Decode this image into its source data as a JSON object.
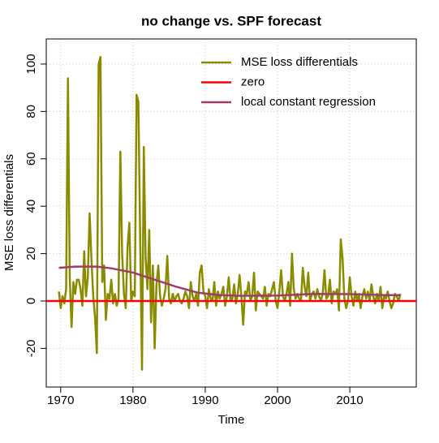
{
  "chart_data": {
    "type": "line",
    "title": "no change vs. SPF forecast",
    "xlabel": "Time",
    "ylabel": "MSE loss differentials",
    "xlim": [
      1968,
      2019.2
    ],
    "ylim": [
      -36.3,
      110.6
    ],
    "xticks": [
      1970,
      1980,
      1990,
      2000,
      2010
    ],
    "yticks": [
      -20,
      0,
      20,
      40,
      60,
      80,
      100
    ],
    "grid": true,
    "legend": "top-right",
    "series": [
      {
        "name": "MSE loss differentials",
        "color": "#8b8b00",
        "x": [
          1969.75,
          1970,
          1970.25,
          1970.5,
          1970.75,
          1971,
          1971.25,
          1971.5,
          1971.75,
          1972,
          1972.25,
          1972.5,
          1972.75,
          1973,
          1973.25,
          1973.5,
          1973.75,
          1974,
          1974.25,
          1974.5,
          1974.75,
          1975,
          1975.25,
          1975.5,
          1975.75,
          1976,
          1976.25,
          1976.5,
          1976.75,
          1977,
          1977.25,
          1977.5,
          1977.75,
          1978,
          1978.25,
          1978.5,
          1978.75,
          1979,
          1979.25,
          1979.5,
          1979.75,
          1980,
          1980.25,
          1980.5,
          1980.75,
          1981,
          1981.25,
          1981.5,
          1981.75,
          1982,
          1982.25,
          1982.5,
          1982.75,
          1983,
          1983.25,
          1983.5,
          1983.75,
          1984,
          1984.25,
          1984.5,
          1984.75,
          1985,
          1985.25,
          1985.5,
          1985.75,
          1986,
          1986.25,
          1986.5,
          1986.75,
          1987,
          1987.25,
          1987.5,
          1987.75,
          1988,
          1988.25,
          1988.5,
          1988.75,
          1989,
          1989.25,
          1989.5,
          1989.75,
          1990,
          1990.25,
          1990.5,
          1990.75,
          1991,
          1991.25,
          1991.5,
          1991.75,
          1992,
          1992.25,
          1992.5,
          1992.75,
          1993,
          1993.25,
          1993.5,
          1993.75,
          1994,
          1994.25,
          1994.5,
          1994.75,
          1995,
          1995.25,
          1995.5,
          1995.75,
          1996,
          1996.25,
          1996.5,
          1996.75,
          1997,
          1997.25,
          1997.5,
          1997.75,
          1998,
          1998.25,
          1998.5,
          1998.75,
          1999,
          1999.25,
          1999.5,
          1999.75,
          2000,
          2000.25,
          2000.5,
          2000.75,
          2001,
          2001.25,
          2001.5,
          2001.75,
          2002,
          2002.25,
          2002.5,
          2002.75,
          2003,
          2003.25,
          2003.5,
          2003.75,
          2004,
          2004.25,
          2004.5,
          2004.75,
          2005,
          2005.25,
          2005.5,
          2005.75,
          2006,
          2006.25,
          2006.5,
          2006.75,
          2007,
          2007.25,
          2007.5,
          2007.75,
          2008,
          2008.25,
          2008.5,
          2008.75,
          2009,
          2009.25,
          2009.5,
          2009.75,
          2010,
          2010.25,
          2010.5,
          2010.75,
          2011,
          2011.25,
          2011.5,
          2011.75,
          2012,
          2012.25,
          2012.5,
          2012.75,
          2013,
          2013.25,
          2013.5,
          2013.75,
          2014,
          2014.25,
          2014.5,
          2014.75,
          2015,
          2015.25,
          2015.5,
          2015.75,
          2016,
          2016.25,
          2016.5,
          2016.75,
          2017
        ],
        "values": [
          4,
          -3,
          2,
          -1,
          5,
          94,
          10,
          -11,
          8,
          3,
          9,
          9,
          5,
          -2,
          21,
          2,
          10,
          37,
          18,
          2,
          -7,
          -22,
          100,
          103,
          8,
          15,
          -8,
          3,
          1,
          9,
          -1,
          3,
          -2,
          1,
          63,
          20,
          3,
          -3,
          23,
          33,
          0,
          4,
          2,
          87,
          84,
          25,
          -29,
          65,
          18,
          5,
          30,
          -9,
          15,
          -20,
          7,
          15,
          2,
          -2,
          1,
          5,
          19,
          1,
          -1,
          3,
          0,
          2,
          3,
          0,
          -1,
          1,
          4,
          2,
          -3,
          8,
          2,
          0,
          3,
          -2,
          12,
          15,
          4,
          2,
          -3,
          5,
          1,
          0,
          8,
          -2,
          4,
          1,
          3,
          6,
          -2,
          2,
          10,
          0,
          1,
          7,
          -1,
          3,
          11,
          2,
          -10,
          4,
          3,
          8,
          0,
          2,
          12,
          -4,
          4,
          3,
          2,
          1,
          6,
          -2,
          3,
          2,
          5,
          8,
          0,
          -3,
          4,
          13,
          2,
          0,
          3,
          8,
          -2,
          20,
          5,
          1,
          3,
          1,
          0,
          14,
          6,
          2,
          12,
          0,
          3,
          4,
          1,
          5,
          2,
          0,
          3,
          13,
          1,
          2,
          9,
          -1,
          4,
          3,
          5,
          -4,
          26,
          18,
          1,
          -3,
          0,
          10,
          2,
          -2,
          4,
          0,
          3,
          -3,
          2,
          5,
          1,
          4,
          0,
          7,
          2,
          -1,
          3,
          0,
          6,
          -3,
          2,
          1,
          4,
          0,
          -3,
          -1,
          3,
          2,
          0,
          3
        ]
      },
      {
        "name": "zero",
        "color": "#ff0000",
        "x": [
          1968,
          2019.2
        ],
        "values": [
          0,
          0
        ]
      },
      {
        "name": "local constant regression",
        "color": "#a33b6a",
        "x": [
          1969.75,
          1972,
          1975,
          1977,
          1980,
          1983,
          1986,
          1989,
          1992,
          1995,
          2000,
          2005,
          2010,
          2015,
          2017
        ],
        "values": [
          14,
          14.5,
          14.5,
          13.8,
          12,
          9,
          6,
          3.5,
          2.5,
          2.2,
          2.3,
          3,
          2.9,
          2.5,
          2.5
        ]
      }
    ]
  }
}
